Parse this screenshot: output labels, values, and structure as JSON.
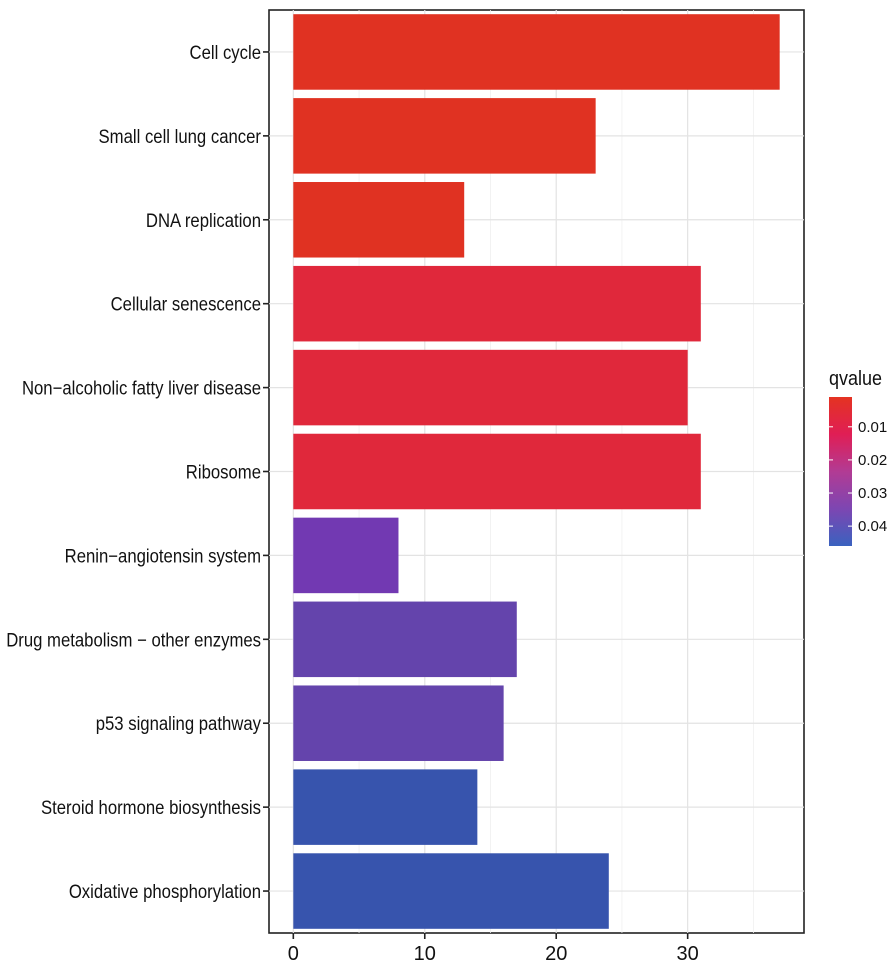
{
  "chart_data": {
    "type": "bar",
    "orientation": "horizontal",
    "categories": [
      "Cell cycle",
      "Small cell lung cancer",
      "DNA replication",
      "Cellular senescence",
      "Non−alcoholic fatty liver disease",
      "Ribosome",
      "Renin−angiotensin system",
      "Drug metabolism − other enzymes",
      "p53 signaling pathway",
      "Steroid hormone biosynthesis",
      "Oxidative phosphorylation"
    ],
    "values": [
      37,
      23,
      13,
      31,
      30,
      31,
      8,
      17,
      16,
      14,
      24
    ],
    "qvalues": [
      0.001,
      0.001,
      0.001,
      0.003,
      0.003,
      0.003,
      0.031,
      0.036,
      0.036,
      0.046,
      0.046
    ],
    "bar_colors": [
      "#e03222",
      "#e03222",
      "#e03222",
      "#e0283b",
      "#e0283b",
      "#e0283b",
      "#7239b2",
      "#6444ac",
      "#6444ac",
      "#3754ad",
      "#3754ad"
    ],
    "title": "",
    "xlabel": "",
    "ylabel": "",
    "xlim": [
      -1.85,
      38.85
    ],
    "x_ticks": [
      0,
      10,
      20,
      30
    ],
    "grid": true,
    "legend": {
      "title": "qvalue",
      "placement": "right",
      "ticks": [
        0.01,
        0.02,
        0.03,
        0.04
      ],
      "ticks_text": [
        "0.01",
        "0.02",
        "0.03",
        "0.04"
      ],
      "range": [
        0.001,
        0.046
      ],
      "gradient_colors": [
        "#e43321",
        "#e01e55",
        "#b23b94",
        "#7d46b2",
        "#3a62bf"
      ]
    }
  }
}
